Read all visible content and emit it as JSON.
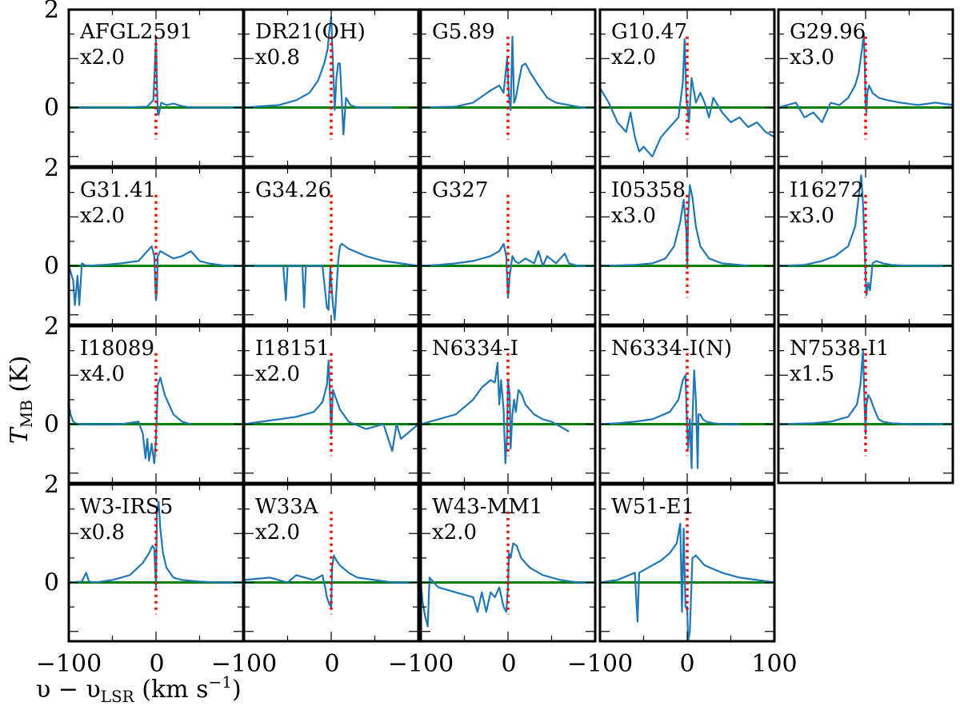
{
  "chart_data": {
    "type": "line",
    "layout": "small-multiples",
    "grid": false,
    "xlabel": "υ − υ",
    "xlabel_sub": "LSR",
    "xlabel_units": "(km s",
    "xlabel_sup": "−1",
    "xlabel_close": ")",
    "ylabel": "T",
    "ylabel_sub": "MB",
    "ylabel_units": "(K)",
    "xlim": [
      -100,
      100
    ],
    "ylim": [
      -1.2,
      2
    ],
    "xticks": [
      -100,
      0,
      100
    ],
    "x_tick_labels": [
      "−100",
      "0",
      "−100",
      "0",
      "−100",
      "0",
      "−100",
      "0",
      "100"
    ],
    "yticks": [
      0,
      2
    ],
    "y_tick_labels": [
      "0",
      "2",
      "0",
      "2",
      "0",
      "2",
      "0",
      "2"
    ],
    "baseline_y": 0,
    "reference_x": 0,
    "colors": {
      "spectrum": "#1f77b4",
      "baseline": "#008000",
      "vlsr_marker": "#ff0000"
    },
    "panels": [
      {
        "name": "AFGL2591",
        "scale": "x2.0",
        "x": [
          -100,
          -40,
          -10,
          -3,
          0,
          1,
          2,
          3,
          6,
          12,
          20,
          30,
          40,
          70,
          100
        ],
        "y": [
          0,
          0,
          0.02,
          0.15,
          1.4,
          0.5,
          -0.1,
          -0.15,
          0.1,
          0.05,
          0.08,
          0.03,
          0,
          0,
          0
        ]
      },
      {
        "name": "DR21(OH)",
        "scale": "x0.8",
        "x": [
          -100,
          -60,
          -40,
          -25,
          -15,
          -8,
          -4,
          -2,
          0,
          2,
          4,
          6,
          8,
          10,
          12,
          14,
          17,
          22,
          30,
          50,
          70
        ],
        "y": [
          0,
          0.05,
          0.15,
          0.3,
          0.55,
          0.9,
          1.2,
          1.6,
          1.85,
          0.9,
          -0.05,
          0.6,
          0.9,
          0.9,
          0.2,
          -0.55,
          0.2,
          0.05,
          0,
          0,
          0
        ]
      },
      {
        "name": "G5.89",
        "scale": "",
        "x": [
          -100,
          -60,
          -40,
          -20,
          -10,
          -5,
          -1,
          1,
          3,
          5,
          7,
          9,
          12,
          16,
          20,
          26,
          35,
          45,
          55,
          70,
          85,
          100
        ],
        "y": [
          0,
          0.02,
          0.1,
          0.35,
          0.45,
          0.3,
          1.0,
          0.25,
          -0.05,
          1.45,
          0.1,
          0.2,
          0.5,
          0.85,
          0.9,
          0.7,
          0.45,
          0.2,
          0.1,
          0.05,
          0,
          0
        ]
      },
      {
        "name": "G10.47",
        "scale": "x2.0",
        "x": [
          -100,
          -90,
          -80,
          -70,
          -65,
          -60,
          -55,
          -50,
          -40,
          -30,
          -20,
          -10,
          -5,
          -3,
          -1,
          2,
          5,
          10,
          15,
          20,
          25,
          30,
          40,
          50,
          60,
          70,
          80,
          90,
          100
        ],
        "y": [
          0.4,
          0.1,
          -0.3,
          -0.5,
          -0.1,
          -0.6,
          -0.9,
          -0.8,
          -1.0,
          -0.6,
          -0.4,
          -0.2,
          0.5,
          1.4,
          0.2,
          -0.3,
          0.6,
          0.1,
          0.3,
          0.1,
          -0.2,
          0.2,
          -0.1,
          -0.3,
          -0.2,
          -0.4,
          -0.3,
          -0.5,
          -0.6
        ]
      },
      {
        "name": "G29.96",
        "scale": "x3.0",
        "x": [
          -100,
          -80,
          -70,
          -60,
          -50,
          -40,
          -30,
          -20,
          -12,
          -8,
          -4,
          -2,
          -1,
          0,
          1,
          2,
          4,
          8,
          15,
          25,
          40,
          60,
          80,
          100
        ],
        "y": [
          0,
          0.1,
          -0.2,
          -0.1,
          -0.3,
          0.1,
          0.05,
          0.2,
          0.45,
          0.7,
          1.2,
          1.5,
          0.9,
          0.05,
          -0.1,
          0.3,
          0.45,
          0.3,
          0.2,
          0.15,
          0.1,
          0.05,
          0.1,
          0.05
        ]
      },
      {
        "name": "G31.41",
        "scale": "x2.0",
        "x": [
          -100,
          -95,
          -93,
          -90,
          -88,
          -85,
          -80,
          -60,
          -40,
          -20,
          -5,
          -2,
          0,
          1,
          2,
          5,
          10,
          20,
          30,
          40,
          50,
          60,
          80,
          100
        ],
        "y": [
          0,
          -0.3,
          -0.8,
          -0.2,
          -0.8,
          0.05,
          0,
          0.02,
          0.05,
          0.1,
          0.4,
          0.2,
          -0.7,
          -0.5,
          0.2,
          0.3,
          0.25,
          0.15,
          0.2,
          0.3,
          0.1,
          0.05,
          0,
          0
        ]
      },
      {
        "name": "G34.26",
        "scale": "",
        "x": [
          -100,
          -70,
          -55,
          -52,
          -50,
          -40,
          -33,
          -31,
          -29,
          -20,
          -10,
          -5,
          -3,
          -1,
          0,
          2,
          4,
          8,
          10,
          12,
          20,
          40,
          60,
          80,
          100
        ],
        "y": [
          0,
          0,
          0,
          -0.7,
          0,
          0,
          0,
          -0.85,
          0,
          0,
          0,
          -0.85,
          -0.9,
          0,
          -0.3,
          -0.8,
          -1.1,
          0.1,
          0.4,
          0.45,
          0.35,
          0.2,
          0.1,
          0.05,
          0
        ]
      },
      {
        "name": "G327",
        "scale": "",
        "x": [
          -100,
          -80,
          -60,
          -40,
          -20,
          -10,
          -5,
          -2,
          0,
          2,
          5,
          8,
          12,
          20,
          30,
          35,
          40,
          45,
          55,
          65,
          70,
          80,
          100
        ],
        "y": [
          0,
          0.02,
          0.05,
          0.1,
          0.2,
          0.3,
          0.45,
          0.2,
          -0.65,
          -0.2,
          0.2,
          0.1,
          0.05,
          0.15,
          0.05,
          0.3,
          0,
          0.2,
          0.05,
          0.25,
          0.05,
          0,
          0
        ]
      },
      {
        "name": "I05358",
        "scale": "x3.0",
        "x": [
          -100,
          -60,
          -40,
          -25,
          -15,
          -8,
          -4,
          -1,
          0,
          1,
          3,
          6,
          10,
          15,
          25,
          40,
          60,
          70
        ],
        "y": [
          0,
          0.02,
          0.05,
          0.15,
          0.4,
          0.9,
          1.35,
          0.7,
          -0.05,
          1.0,
          1.65,
          1.4,
          0.8,
          0.4,
          0.15,
          0.05,
          0.02,
          0
        ]
      },
      {
        "name": "I16272",
        "scale": "x3.0",
        "x": [
          -100,
          -70,
          -50,
          -35,
          -20,
          -12,
          -8,
          -5,
          -3,
          -1,
          0,
          1,
          3,
          5,
          8,
          12,
          20,
          30,
          50,
          70,
          100
        ],
        "y": [
          0,
          0.02,
          0.1,
          0.2,
          0.4,
          0.8,
          1.4,
          1.85,
          1.3,
          0.3,
          -0.2,
          -0.6,
          -0.35,
          -0.5,
          0.05,
          0.1,
          0.05,
          0.02,
          0,
          0,
          0
        ]
      },
      {
        "name": "I18089",
        "scale": "x4.0",
        "x": [
          -100,
          -98,
          -95,
          -90,
          -60,
          -40,
          -20,
          -15,
          -12,
          -10,
          -8,
          -5,
          -2,
          0,
          2,
          5,
          10,
          20,
          30,
          40
        ],
        "y": [
          0.4,
          0.2,
          0.05,
          0,
          0,
          0,
          0.05,
          -0.2,
          -0.7,
          -0.3,
          -0.75,
          -0.4,
          -0.8,
          -0.3,
          0.8,
          0.95,
          0.6,
          0.2,
          0.05,
          0
        ]
      },
      {
        "name": "I18151",
        "scale": "x2.0",
        "x": [
          -100,
          -80,
          -60,
          -40,
          -20,
          -10,
          -5,
          -3,
          -1,
          0,
          2,
          5,
          10,
          20,
          40,
          60,
          70,
          75,
          80,
          100
        ],
        "y": [
          0,
          0.05,
          0.1,
          0.15,
          0.25,
          0.45,
          0.8,
          1.3,
          0.4,
          -0.2,
          0.7,
          0.55,
          0.3,
          0.05,
          -0.1,
          0,
          -0.55,
          0,
          -0.3,
          0
        ]
      },
      {
        "name": "N6334-I",
        "scale": "",
        "x": [
          -100,
          -80,
          -60,
          -40,
          -30,
          -20,
          -15,
          -12,
          -10,
          -8,
          -5,
          -3,
          -1,
          0,
          2,
          3,
          5,
          7,
          9,
          12,
          16,
          20,
          30,
          40,
          50,
          60,
          70
        ],
        "y": [
          0,
          0.1,
          0.2,
          0.5,
          0.75,
          0.9,
          0.85,
          1.25,
          0.4,
          0.9,
          0.3,
          -0.8,
          -0.2,
          0.9,
          0.6,
          -0.5,
          0.2,
          0.5,
          0.25,
          0.7,
          0.6,
          0.4,
          0.2,
          0.1,
          0.05,
          -0.05,
          -0.15
        ]
      },
      {
        "name": "N6334-I(N)",
        "scale": "",
        "x": [
          -100,
          -80,
          -60,
          -40,
          -20,
          -10,
          -5,
          -2,
          0,
          1,
          3,
          5,
          6,
          8,
          10,
          12,
          13,
          15,
          18,
          22,
          30,
          40,
          60
        ],
        "y": [
          0,
          0.02,
          0.05,
          0.1,
          0.25,
          0.5,
          0.9,
          1.0,
          -0.1,
          -0.5,
          0.1,
          -0.9,
          0.05,
          1.1,
          0.5,
          -0.9,
          0.2,
          0.2,
          0.1,
          0.05,
          0.02,
          0,
          0
        ]
      },
      {
        "name": "N7538-I1",
        "scale": "x1.5",
        "x": [
          -100,
          -60,
          -40,
          -20,
          -10,
          -6,
          -3,
          -1,
          0,
          1,
          3,
          6,
          10,
          15,
          20,
          30,
          50,
          80,
          100
        ],
        "y": [
          0,
          0.02,
          0.05,
          0.15,
          0.4,
          0.8,
          1.5,
          0.3,
          -0.2,
          0.4,
          0.6,
          0.5,
          0.3,
          0.1,
          0.05,
          0.02,
          0,
          0,
          0
        ]
      },
      {
        "name": "W3-IRS5",
        "scale": "x0.8",
        "x": [
          -100,
          -85,
          -80,
          -77,
          -70,
          -50,
          -30,
          -15,
          -8,
          -4,
          -2,
          0,
          1,
          3,
          5,
          8,
          12,
          20,
          30,
          50,
          70,
          100
        ],
        "y": [
          0,
          0.02,
          0.2,
          0.02,
          0,
          0.05,
          0.15,
          0.4,
          0.6,
          0.75,
          0.7,
          -0.1,
          1.4,
          1.65,
          1.1,
          0.6,
          0.3,
          0.1,
          0.05,
          0.02,
          0,
          0
        ]
      },
      {
        "name": "W33A",
        "scale": "x2.0",
        "x": [
          -100,
          -70,
          -50,
          -40,
          -30,
          -20,
          -10,
          -7,
          -5,
          -2,
          0,
          1,
          3,
          6,
          10,
          20,
          30,
          50,
          70,
          100
        ],
        "y": [
          0.05,
          0.1,
          0,
          0.15,
          0.1,
          0.05,
          0.15,
          -0.1,
          -0.3,
          -0.45,
          -0.5,
          0.3,
          0.55,
          0.45,
          0.35,
          0.2,
          0.1,
          0.05,
          0,
          0
        ]
      },
      {
        "name": "W43-MM1",
        "scale": "x2.0",
        "x": [
          -100,
          -98,
          -95,
          -92,
          -90,
          -80,
          -60,
          -40,
          -35,
          -30,
          -25,
          -20,
          -15,
          -10,
          -5,
          -2,
          0,
          1,
          3,
          6,
          10,
          15,
          25,
          40,
          60,
          80,
          100
        ],
        "y": [
          0,
          -0.4,
          -0.7,
          -0.9,
          0.1,
          -0.1,
          -0.2,
          -0.3,
          -0.6,
          -0.2,
          -0.6,
          -0.2,
          -0.3,
          -0.1,
          -0.5,
          -0.6,
          -0.1,
          0.6,
          0.5,
          0.8,
          0.75,
          0.5,
          0.3,
          0.15,
          0.05,
          0,
          0
        ]
      },
      {
        "name": "W51-E1",
        "scale": "",
        "x": [
          -100,
          -80,
          -60,
          -57,
          -55,
          -40,
          -30,
          -20,
          -12,
          -8,
          -6,
          -5,
          -4,
          -2,
          0,
          1,
          3,
          6,
          10,
          15,
          20,
          40,
          60,
          80,
          100
        ],
        "y": [
          0,
          0.05,
          0.2,
          -0.8,
          0.2,
          0.35,
          0.45,
          0.6,
          0.8,
          1.2,
          -0.6,
          0.3,
          1.1,
          -0.5,
          -0.5,
          -1.2,
          -1.0,
          0.5,
          0.55,
          0.45,
          0.35,
          0.2,
          0.1,
          0.05,
          0
        ]
      }
    ]
  }
}
